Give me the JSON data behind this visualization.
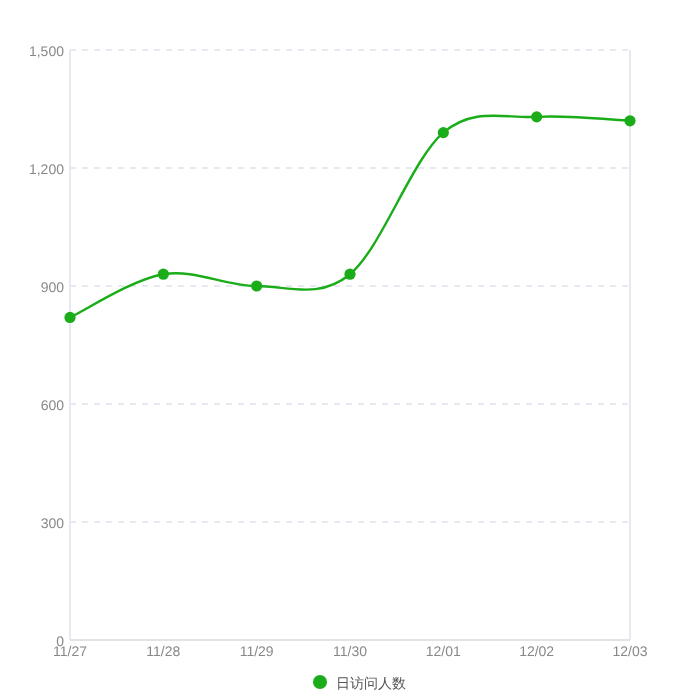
{
  "chart_data": {
    "type": "line",
    "categories": [
      "11/27",
      "11/28",
      "11/29",
      "11/30",
      "12/01",
      "12/02",
      "12/03"
    ],
    "series": [
      {
        "name": "日访问人数",
        "color": "#1aad19",
        "values": [
          820,
          930,
          900,
          930,
          1290,
          1330,
          1320
        ]
      }
    ],
    "ylim": [
      0,
      1500
    ],
    "yticks": [
      0,
      300,
      600,
      900,
      {
        "value": 1200,
        "label": "1,200"
      },
      {
        "value": 1500,
        "label": "1,500"
      }
    ],
    "grid": "y",
    "legend": "bottom",
    "marker": "circle"
  }
}
